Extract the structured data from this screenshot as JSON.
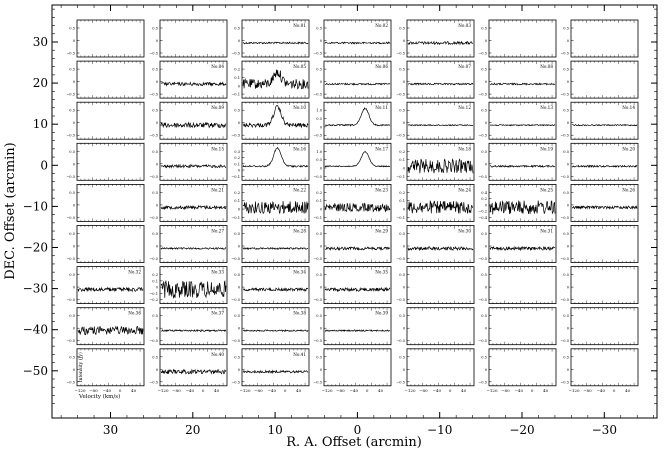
{
  "chart_data": {
    "type": "line",
    "title": "",
    "xlabel": "R. A. Offset (arcmin)",
    "ylabel": "DEC. Offset (arcmin)",
    "x_ticks": [
      30,
      20,
      10,
      0,
      -10,
      -20,
      -30
    ],
    "y_ticks": [
      30,
      20,
      10,
      0,
      -10,
      -20,
      -30,
      -40,
      -50
    ],
    "xlim": [
      36,
      -36
    ],
    "ylim": [
      -58,
      38
    ],
    "panel_xlabel": "Velocity (km/s)",
    "panel_ylabel": "Intensity (Jy)",
    "panel_velocity_ticks": [
      "−120",
      "−80",
      "−40",
      "0",
      "40"
    ],
    "panel_velocity_range": [
      -120,
      50
    ],
    "rows": [
      {
        "dec": 30,
        "panels": [
          {
            "ra": 30,
            "label": "",
            "yticks": [
              "0.5",
              "0",
              "−0.5"
            ],
            "amp": 0,
            "peak": 0
          },
          {
            "ra": 20,
            "label": "",
            "yticks": [
              "0.5",
              "0",
              "−0.5"
            ],
            "amp": 0,
            "peak": 0
          },
          {
            "ra": 10,
            "label": "No.01",
            "yticks": [
              "0.5",
              "0",
              "−0.5"
            ],
            "amp": 0.06,
            "peak": 0
          },
          {
            "ra": 0,
            "label": "No.02",
            "yticks": [
              "0.5",
              "0",
              "−0.5"
            ],
            "amp": 0.06,
            "peak": 0
          },
          {
            "ra": -10,
            "label": "No.03",
            "yticks": [
              "0.5",
              "0",
              "−0.5"
            ],
            "amp": 0.1,
            "peak": 0
          },
          {
            "ra": -20,
            "label": "",
            "yticks": [
              "0.5",
              "0",
              "−0.5"
            ],
            "amp": 0,
            "peak": 0
          },
          {
            "ra": -30,
            "label": "",
            "yticks": [
              "0.5",
              "0",
              "−0.5"
            ],
            "amp": 0,
            "peak": 0
          }
        ]
      },
      {
        "dec": 20,
        "panels": [
          {
            "ra": 30,
            "label": "",
            "yticks": [
              "0.5",
              "0",
              "−0.5"
            ],
            "amp": 0,
            "peak": 0
          },
          {
            "ra": 20,
            "label": "No.04",
            "yticks": [
              "0.5",
              "0",
              "−0.5"
            ],
            "amp": 0.12,
            "peak": 0
          },
          {
            "ra": 10,
            "label": "No.05",
            "yticks": [
              "0.2",
              "0.1",
              "0",
              "−0.1"
            ],
            "amp": 0.35,
            "peak": 0.5
          },
          {
            "ra": 0,
            "label": "No.06",
            "yticks": [
              "0.5",
              "0",
              "−0.5"
            ],
            "amp": 0.06,
            "peak": 0
          },
          {
            "ra": -10,
            "label": "No.07",
            "yticks": [
              "0.5",
              "0",
              "−0.5"
            ],
            "amp": 0.06,
            "peak": 0
          },
          {
            "ra": -20,
            "label": "No.08",
            "yticks": [
              "0.5",
              "0",
              "−0.5"
            ],
            "amp": 0.06,
            "peak": 0
          },
          {
            "ra": -30,
            "label": "",
            "yticks": [
              "0.5",
              "0",
              "−0.5"
            ],
            "amp": 0,
            "peak": 0
          }
        ]
      },
      {
        "dec": 10,
        "panels": [
          {
            "ra": 30,
            "label": "",
            "yticks": [
              "0.5",
              "0",
              "−0.5"
            ],
            "amp": 0,
            "peak": 0
          },
          {
            "ra": 20,
            "label": "No.09",
            "yticks": [
              "0.5",
              "0",
              "−0.5"
            ],
            "amp": 0.18,
            "peak": 0
          },
          {
            "ra": 10,
            "label": "No.10",
            "yticks": [
              "0.5",
              "0",
              "−0.5"
            ],
            "amp": 0.15,
            "peak": 0.75
          },
          {
            "ra": 0,
            "label": "No.11",
            "yticks": [
              "1.0",
              "0.5",
              "0",
              "−0.5"
            ],
            "amp": 0.05,
            "peak": 0.7
          },
          {
            "ra": -10,
            "label": "No.12",
            "yticks": [
              "0.5",
              "0",
              "−0.5"
            ],
            "amp": 0.04,
            "peak": 0
          },
          {
            "ra": -20,
            "label": "No.13",
            "yticks": [
              "0.5",
              "0",
              "−0.5"
            ],
            "amp": 0.04,
            "peak": 0
          },
          {
            "ra": -30,
            "label": "No.14",
            "yticks": [
              "0.5",
              "0",
              "−0.5"
            ],
            "amp": 0.04,
            "peak": 0
          }
        ]
      },
      {
        "dec": 0,
        "panels": [
          {
            "ra": 30,
            "label": "",
            "yticks": [
              "0.5",
              "0",
              "−0.5"
            ],
            "amp": 0,
            "peak": 0
          },
          {
            "ra": 20,
            "label": "No.15",
            "yticks": [
              "0.5",
              "0",
              "−0.5"
            ],
            "amp": 0.1,
            "peak": 0
          },
          {
            "ra": 10,
            "label": "No.16",
            "yticks": [
              "0.3",
              "0.2",
              "0.1",
              "0",
              "−0.1"
            ],
            "amp": 0.06,
            "peak": 0.75
          },
          {
            "ra": 0,
            "label": "No.17",
            "yticks": [
              "1.0",
              "0.5",
              "0",
              "−0.5"
            ],
            "amp": 0.04,
            "peak": 0.6
          },
          {
            "ra": -10,
            "label": "No.18",
            "yticks": [
              "0.2",
              "0.1",
              "0",
              "−0.1"
            ],
            "amp": 0.5,
            "peak": 0
          },
          {
            "ra": -20,
            "label": "No.19",
            "yticks": [
              "0.5",
              "0",
              "−0.5"
            ],
            "amp": 0.06,
            "peak": 0
          },
          {
            "ra": -30,
            "label": "No.20",
            "yticks": [
              "0.5",
              "0",
              "−0.5"
            ],
            "amp": 0.06,
            "peak": 0
          }
        ]
      },
      {
        "dec": -10,
        "panels": [
          {
            "ra": 30,
            "label": "",
            "yticks": [
              "0.5",
              "0",
              "−0.5"
            ],
            "amp": 0,
            "peak": 0
          },
          {
            "ra": 20,
            "label": "No.21",
            "yticks": [
              "0.5",
              "0",
              "−0.5"
            ],
            "amp": 0.12,
            "peak": 0
          },
          {
            "ra": 10,
            "label": "No.22",
            "yticks": [
              "0.2",
              "0.1",
              "0",
              "−0.1"
            ],
            "amp": 0.45,
            "peak": 0
          },
          {
            "ra": 0,
            "label": "No.23",
            "yticks": [
              "0.2",
              "0.1",
              "0",
              "−0.1"
            ],
            "amp": 0.3,
            "peak": 0
          },
          {
            "ra": -10,
            "label": "No.24",
            "yticks": [
              "0.2",
              "0.1",
              "0",
              "−0.1"
            ],
            "amp": 0.45,
            "peak": 0
          },
          {
            "ra": -20,
            "label": "No.25",
            "yticks": [
              "0.4",
              "0.2",
              "0",
              "−0.2",
              "−0.4"
            ],
            "amp": 0.5,
            "peak": 0
          },
          {
            "ra": -30,
            "label": "No.26",
            "yticks": [
              "0.5",
              "0",
              "−0.5"
            ],
            "amp": 0.1,
            "peak": 0
          }
        ]
      },
      {
        "dec": -20,
        "panels": [
          {
            "ra": 30,
            "label": "",
            "yticks": [
              "0.5",
              "0",
              "−0.5"
            ],
            "amp": 0,
            "peak": 0
          },
          {
            "ra": 20,
            "label": "No.27",
            "yticks": [
              "0.5",
              "0",
              "−0.5"
            ],
            "amp": 0.06,
            "peak": 0
          },
          {
            "ra": 10,
            "label": "No.28",
            "yticks": [
              "0.5",
              "0",
              "−0.5"
            ],
            "amp": 0.06,
            "peak": 0
          },
          {
            "ra": 0,
            "label": "No.29",
            "yticks": [
              "0.5",
              "0",
              "−0.5"
            ],
            "amp": 0.1,
            "peak": 0
          },
          {
            "ra": -10,
            "label": "No.30",
            "yticks": [
              "0.5",
              "0",
              "−0.5"
            ],
            "amp": 0.12,
            "peak": 0
          },
          {
            "ra": -20,
            "label": "No.31",
            "yticks": [
              "0.5",
              "0",
              "−0.5"
            ],
            "amp": 0.12,
            "peak": 0
          },
          {
            "ra": -30,
            "label": "",
            "yticks": [
              "0.5",
              "0",
              "−0.5"
            ],
            "amp": 0,
            "peak": 0
          }
        ]
      },
      {
        "dec": -30,
        "panels": [
          {
            "ra": 30,
            "label": "No.32",
            "yticks": [
              "0.5",
              "0",
              "−0.5"
            ],
            "amp": 0.15,
            "peak": 0
          },
          {
            "ra": 20,
            "label": "No.33",
            "yticks": [
              "0.2",
              "0.1",
              "0",
              "−0.1",
              "−0.2"
            ],
            "amp": 0.6,
            "peak": 0
          },
          {
            "ra": 10,
            "label": "No.34",
            "yticks": [
              "0.5",
              "0",
              "−0.5"
            ],
            "amp": 0.1,
            "peak": 0
          },
          {
            "ra": 0,
            "label": "No.35",
            "yticks": [
              "0.5",
              "0",
              "−0.5"
            ],
            "amp": 0.12,
            "peak": 0
          },
          {
            "ra": -10,
            "label": "",
            "yticks": [
              "0.5",
              "0",
              "−0.5"
            ],
            "amp": 0,
            "peak": 0
          },
          {
            "ra": -20,
            "label": "",
            "yticks": [
              "0.5",
              "0",
              "−0.5"
            ],
            "amp": 0,
            "peak": 0
          },
          {
            "ra": -30,
            "label": "",
            "yticks": [
              "0.5",
              "0",
              "−0.5"
            ],
            "amp": 0,
            "peak": 0
          }
        ]
      },
      {
        "dec": -40,
        "panels": [
          {
            "ra": 30,
            "label": "No.36",
            "yticks": [
              "0.5",
              "0",
              "−0.5"
            ],
            "amp": 0.3,
            "peak": 0
          },
          {
            "ra": 20,
            "label": "No.37",
            "yticks": [
              "0.5",
              "0",
              "−0.5"
            ],
            "amp": 0.06,
            "peak": 0
          },
          {
            "ra": 10,
            "label": "No.38",
            "yticks": [
              "0.5",
              "0",
              "−0.5"
            ],
            "amp": 0.05,
            "peak": 0
          },
          {
            "ra": 0,
            "label": "No.39",
            "yticks": [
              "0.5",
              "0",
              "−0.5"
            ],
            "amp": 0.05,
            "peak": 0
          },
          {
            "ra": -10,
            "label": "",
            "yticks": [
              "0.5",
              "0",
              "−0.5"
            ],
            "amp": 0,
            "peak": 0
          },
          {
            "ra": -20,
            "label": "",
            "yticks": [
              "0.5",
              "0",
              "−0.5"
            ],
            "amp": 0,
            "peak": 0
          },
          {
            "ra": -30,
            "label": "",
            "yticks": [
              "0.5",
              "0",
              "−0.5"
            ],
            "amp": 0,
            "peak": 0
          }
        ]
      },
      {
        "dec": -50,
        "panels": [
          {
            "ra": 30,
            "label": "",
            "yticks": [
              "0.5",
              "0",
              "−0.5"
            ],
            "amp": 0,
            "peak": 0
          },
          {
            "ra": 20,
            "label": "No.40",
            "yticks": [
              "0.5",
              "0",
              "−0.5"
            ],
            "amp": 0.15,
            "peak": 0
          },
          {
            "ra": 10,
            "label": "No.41",
            "yticks": [
              "0.5",
              "0",
              "−0.5"
            ],
            "amp": 0.08,
            "peak": 0
          },
          {
            "ra": 0,
            "label": "",
            "yticks": [
              "0.5",
              "0",
              "−0.5"
            ],
            "amp": 0,
            "peak": 0
          },
          {
            "ra": -10,
            "label": "",
            "yticks": [
              "0.5",
              "0",
              "−0.5"
            ],
            "amp": 0,
            "peak": 0
          },
          {
            "ra": -20,
            "label": "",
            "yticks": [
              "0.5",
              "0",
              "−0.5"
            ],
            "amp": 0,
            "peak": 0
          },
          {
            "ra": -30,
            "label": "",
            "yticks": [
              "0.5",
              "0",
              "−0.5"
            ],
            "amp": 0,
            "peak": 0
          }
        ]
      }
    ]
  }
}
